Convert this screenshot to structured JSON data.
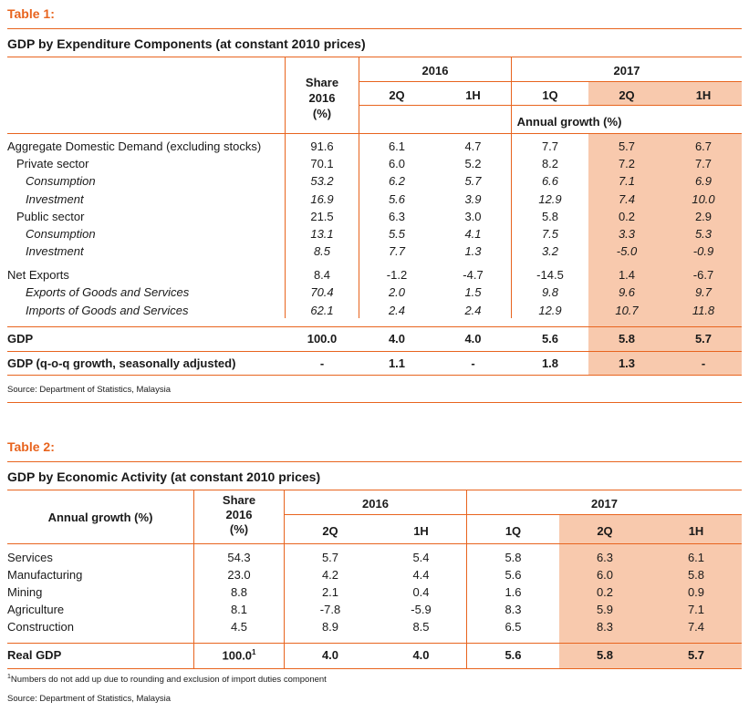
{
  "table1": {
    "label": "Table 1:",
    "title": "GDP by Expenditure Components (at constant 2010 prices)",
    "share_header": [
      "Share",
      "2016",
      "(%)"
    ],
    "year_2016": "2016",
    "year_2017": "2017",
    "periods": [
      "2Q",
      "1H",
      "1Q",
      "2Q",
      "1H"
    ],
    "subheader": "Annual growth (%)",
    "rows": [
      {
        "label": "Aggregate Domestic Demand (excluding stocks)",
        "style": "normal",
        "indent": 0,
        "values": [
          "91.6",
          "6.1",
          "4.7",
          "7.7",
          "5.7",
          "6.7"
        ]
      },
      {
        "label": "Private sector",
        "style": "normal",
        "indent": 1,
        "values": [
          "70.1",
          "6.0",
          "5.2",
          "8.2",
          "7.2",
          "7.7"
        ]
      },
      {
        "label": "Consumption",
        "style": "italic",
        "indent": 2,
        "values": [
          "53.2",
          "6.2",
          "5.7",
          "6.6",
          "7.1",
          "6.9"
        ]
      },
      {
        "label": "Investment",
        "style": "italic",
        "indent": 2,
        "values": [
          "16.9",
          "5.6",
          "3.9",
          "12.9",
          "7.4",
          "10.0"
        ]
      },
      {
        "label": "Public sector",
        "style": "normal",
        "indent": 1,
        "values": [
          "21.5",
          "6.3",
          "3.0",
          "5.8",
          "0.2",
          "2.9"
        ]
      },
      {
        "label": "Consumption",
        "style": "italic",
        "indent": 2,
        "values": [
          "13.1",
          "5.5",
          "4.1",
          "7.5",
          "3.3",
          "5.3"
        ]
      },
      {
        "label": "Investment",
        "style": "italic",
        "indent": 2,
        "values": [
          "8.5",
          "7.7",
          "1.3",
          "3.2",
          "-5.0",
          "-0.9"
        ]
      },
      {
        "label": "Net Exports",
        "style": "normal",
        "indent": 0,
        "values": [
          "8.4",
          "-1.2",
          "-4.7",
          "-14.5",
          "1.4",
          "-6.7"
        ]
      },
      {
        "label": "Exports of Goods and Services",
        "style": "italic",
        "indent": 2,
        "values": [
          "70.4",
          "2.0",
          "1.5",
          "9.8",
          "9.6",
          "9.7"
        ]
      },
      {
        "label": "Imports of Goods and Services",
        "style": "italic",
        "indent": 2,
        "values": [
          "62.1",
          "2.4",
          "2.4",
          "12.9",
          "10.7",
          "11.8"
        ]
      }
    ],
    "gdp_row": {
      "label": "GDP",
      "values": [
        "100.0",
        "4.0",
        "4.0",
        "5.6",
        "5.8",
        "5.7"
      ]
    },
    "qoq_row": {
      "label": "GDP (q-o-q growth, seasonally adjusted)",
      "values": [
        "-",
        "1.1",
        "-",
        "1.8",
        "1.3",
        "-"
      ]
    },
    "source": "Source: Department of Statistics, Malaysia"
  },
  "table2": {
    "label": "Table 2:",
    "title": "GDP by Economic Activity (at constant 2010 prices)",
    "row_header": "Annual growth (%)",
    "share_header": [
      "Share",
      "2016",
      "(%)"
    ],
    "year_2016": "2016",
    "year_2017": "2017",
    "periods": [
      "2Q",
      "1H",
      "1Q",
      "2Q",
      "1H"
    ],
    "rows": [
      {
        "label": "Services",
        "values": [
          "54.3",
          "5.7",
          "5.4",
          "5.8",
          "6.3",
          "6.1"
        ]
      },
      {
        "label": "Manufacturing",
        "values": [
          "23.0",
          "4.2",
          "4.4",
          "5.6",
          "6.0",
          "5.8"
        ]
      },
      {
        "label": "Mining",
        "values": [
          "8.8",
          "2.1",
          "0.4",
          "1.6",
          "0.2",
          "0.9"
        ]
      },
      {
        "label": "Agriculture",
        "values": [
          "8.1",
          "-7.8",
          "-5.9",
          "8.3",
          "5.9",
          "7.1"
        ]
      },
      {
        "label": "Construction",
        "values": [
          "4.5",
          "8.9",
          "8.5",
          "6.5",
          "8.3",
          "7.4"
        ]
      }
    ],
    "real_gdp_row": {
      "label": "Real GDP",
      "share": "100.0",
      "share_sup": "1",
      "values": [
        "4.0",
        "4.0",
        "5.6",
        "5.8",
        "5.7"
      ]
    },
    "footnote_sup": "1",
    "footnote": "Numbers do not add up due to rounding and exclusion of import duties component",
    "source": "Source: Department of Statistics, Malaysia"
  }
}
